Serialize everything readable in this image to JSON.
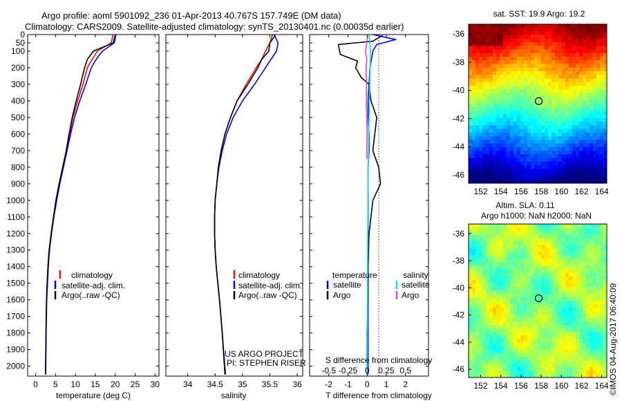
{
  "header": {
    "line1": "Argo profile: aoml 5901092_236 01-Apr-2013 40.767S 157.749E (DM data)",
    "line2": "Climatology: CARS2009. Satellite-adjusted climatology: synTS_20130401.nc (0.00035d earlier)"
  },
  "colors": {
    "climatology": "#ff0000",
    "satellite": "#0000ff",
    "argo": "#000000",
    "sat_diff_T": "#0000ff",
    "sal_diff_sat": "#00e5ee",
    "sal_diff_argo": "#e040e0"
  },
  "stamp": "©IMOS 04-Aug-2017 06:40:09",
  "chart_data": [
    {
      "type": "line",
      "id": "temperature",
      "xlabel": "temperature (deg C)",
      "ylabel": "",
      "xlim": [
        -2,
        31
      ],
      "ylim": [
        2060,
        0
      ],
      "xticks": [
        0,
        5,
        10,
        15,
        20,
        25,
        30
      ],
      "yticks": [
        0,
        50,
        100,
        200,
        300,
        400,
        500,
        600,
        700,
        800,
        900,
        1000,
        1100,
        1200,
        1300,
        1400,
        1500,
        1600,
        1700,
        1800,
        1900,
        2000
      ],
      "legend": {
        "placement": "lower-middle",
        "entries": [
          "climatology",
          "satellite-adj. clim.",
          "Argo(..raw -QC)"
        ]
      },
      "series": [
        {
          "name": "climatology",
          "color": "#ff0000",
          "x": [
            19.5,
            19.0,
            15.5,
            14.2,
            13.0,
            11.9,
            10.6,
            9.4,
            8.6,
            7.8,
            6.9,
            6.0,
            5.2,
            4.5,
            3.9,
            3.4,
            3.1,
            2.9,
            2.75,
            2.6,
            2.5
          ],
          "y": [
            0,
            50,
            100,
            150,
            200,
            300,
            400,
            500,
            600,
            700,
            800,
            900,
            1000,
            1100,
            1200,
            1300,
            1400,
            1500,
            1600,
            1800,
            2050
          ]
        },
        {
          "name": "satellite-adj. clim.",
          "color": "#0000ff",
          "x": [
            20.2,
            19.8,
            16.8,
            15.2,
            14.0,
            12.6,
            11.1,
            9.8,
            8.8,
            7.9,
            7.0,
            6.1,
            5.3,
            4.6,
            4.0,
            3.5,
            3.2,
            3.0,
            2.8,
            2.65,
            2.55
          ],
          "y": [
            0,
            50,
            100,
            150,
            200,
            300,
            400,
            500,
            600,
            700,
            800,
            900,
            1000,
            1100,
            1200,
            1300,
            1400,
            1500,
            1600,
            1800,
            2050
          ]
        },
        {
          "name": "Argo(..raw -QC)",
          "color": "#000000",
          "x": [
            20.0,
            19.5,
            14.5,
            13.0,
            12.3,
            11.3,
            10.2,
            9.2,
            8.4,
            7.7,
            6.8,
            5.9,
            5.1,
            4.5,
            3.9,
            3.4,
            3.1,
            2.9,
            2.75,
            2.6,
            2.5
          ],
          "y": [
            5,
            50,
            100,
            150,
            200,
            300,
            400,
            500,
            600,
            700,
            800,
            900,
            1000,
            1100,
            1200,
            1300,
            1400,
            1500,
            1600,
            1800,
            2050
          ]
        }
      ]
    },
    {
      "type": "line",
      "id": "salinity",
      "xlabel": "salinity",
      "ylabel": "",
      "xlim": [
        33.6,
        36.1
      ],
      "ylim": [
        2060,
        0
      ],
      "xticks": [
        34,
        34.5,
        35,
        35.5,
        36
      ],
      "legend": {
        "placement": "lower-right",
        "entries": [
          "climatology",
          "satellite-adj. clim.",
          "Argo(..raw -QC)"
        ]
      },
      "annotation": [
        "US ARGO PROJECT",
        "PI: STEPHEN RISER"
      ],
      "series": [
        {
          "name": "climatology",
          "color": "#ff0000",
          "x": [
            35.55,
            35.5,
            35.42,
            35.35,
            35.25,
            35.07,
            34.9,
            34.78,
            34.68,
            34.61,
            34.56,
            34.53,
            34.5,
            34.49,
            34.49,
            34.5,
            34.52,
            34.55,
            34.58,
            34.63,
            34.68
          ],
          "y": [
            0,
            50,
            100,
            150,
            200,
            300,
            400,
            500,
            600,
            700,
            800,
            900,
            1000,
            1100,
            1200,
            1300,
            1400,
            1500,
            1600,
            1800,
            2050
          ]
        },
        {
          "name": "satellite-adj. clim.",
          "color": "#0000ff",
          "x": [
            35.58,
            35.65,
            35.62,
            35.52,
            35.42,
            35.22,
            35.0,
            34.83,
            34.71,
            34.63,
            34.57,
            34.53,
            34.5,
            34.49,
            34.49,
            34.5,
            34.52,
            34.55,
            34.58,
            34.63,
            34.69
          ],
          "y": [
            0,
            50,
            100,
            150,
            200,
            300,
            400,
            500,
            600,
            700,
            800,
            900,
            1000,
            1100,
            1200,
            1300,
            1400,
            1500,
            1600,
            1800,
            2050
          ]
        },
        {
          "name": "Argo(..raw -QC)",
          "color": "#000000",
          "x": [
            35.6,
            35.5,
            35.48,
            35.35,
            35.28,
            35.1,
            34.9,
            34.78,
            34.68,
            34.61,
            34.56,
            34.53,
            34.5,
            34.49,
            34.49,
            34.5,
            34.52,
            34.55,
            34.58,
            34.63,
            34.68
          ],
          "y": [
            5,
            50,
            100,
            150,
            200,
            300,
            400,
            500,
            600,
            700,
            800,
            900,
            1000,
            1100,
            1200,
            1300,
            1400,
            1500,
            1600,
            1800,
            2050
          ]
        }
      ]
    },
    {
      "type": "line",
      "id": "difference",
      "xlabel": "T difference from climatology",
      "xlabel_top": "S difference from climatology",
      "xlim": [
        -3,
        3.2
      ],
      "ylim": [
        2060,
        0
      ],
      "xticks": [
        -2,
        -1,
        0,
        1,
        2
      ],
      "xticks_S_labels": [
        "-0.5",
        "-0.25",
        "0",
        "0.25",
        "0.5"
      ],
      "legend": {
        "placement": "middle",
        "header_left": "temperature",
        "header_right": "salinity",
        "entries": [
          "satellite",
          "Argo",
          "satellite",
          "Argo"
        ]
      },
      "series": [
        {
          "name": "satellite",
          "quantity": "temperature",
          "color": "#0000ff",
          "x": [
            0.3,
            1.5,
            0.5,
            0.3,
            0.15,
            0.1,
            0.05,
            0.05,
            0.1,
            0.1,
            0.05,
            0.05,
            0.05,
            0.05,
            0.05,
            0.05,
            0.05,
            0.05,
            0.05,
            0.05
          ],
          "y": [
            0,
            30,
            60,
            100,
            200,
            300,
            400,
            500,
            600,
            700,
            800,
            900,
            1000,
            1200,
            1400,
            1600,
            1800,
            1900,
            2000,
            2050
          ]
        },
        {
          "name": "Argo",
          "quantity": "temperature",
          "color": "#000000",
          "x": [
            0.8,
            0.3,
            -1.5,
            -1.4,
            -0.5,
            -0.6,
            -0.3,
            0.1,
            0.2,
            0.5,
            0.4,
            0.3,
            0.6,
            0.7,
            0.3,
            0.1,
            0.05,
            0.05,
            0.0,
            0.0
          ],
          "y": [
            5,
            40,
            60,
            120,
            160,
            200,
            260,
            300,
            400,
            500,
            600,
            700,
            800,
            900,
            1000,
            1200,
            1400,
            1600,
            1800,
            2050
          ]
        },
        {
          "name": "satellite",
          "quantity": "salinity",
          "color": "#00e5ee",
          "x": [
            0.1,
            0.15,
            0.18,
            0.16,
            0.14,
            0.12,
            0.1,
            0.08,
            0.07,
            0.06,
            0.05,
            0.04,
            0.03,
            0.02,
            0.02,
            0.01,
            0.01,
            0.0
          ],
          "y": [
            0,
            50,
            100,
            200,
            300,
            400,
            500,
            600,
            700,
            800,
            900,
            1000,
            1200,
            1400,
            1600,
            1800,
            1900,
            2050
          ]
        },
        {
          "name": "Argo",
          "quantity": "salinity",
          "color": "#e040e0",
          "x": [
            0.03,
            -0.08,
            -0.02,
            -0.05,
            -0.03,
            -0.04,
            -0.02,
            0.0,
            -0.02,
            0.0
          ],
          "y": [
            10,
            100,
            150,
            200,
            300,
            400,
            500,
            600,
            700,
            750
          ]
        }
      ]
    },
    {
      "type": "heatmap",
      "id": "sst-map",
      "title": "sat. SST: 19.9 Argo: 19.2",
      "xlim": [
        150.8,
        164.5
      ],
      "ylim": [
        -46.6,
        -35.3
      ],
      "xticks": [
        152,
        154,
        156,
        158,
        160,
        162,
        164
      ],
      "yticks": [
        -36,
        -38,
        -40,
        -42,
        -44,
        -46
      ],
      "marker": {
        "lon": 157.749,
        "lat": -40.767
      }
    },
    {
      "type": "heatmap",
      "id": "sla-map",
      "title_line1": "Altim. SLA: 0.11",
      "title_line2": "Argo h1000: NaN h2000: NaN",
      "xlim": [
        150.8,
        164.5
      ],
      "ylim": [
        -46.6,
        -35.3
      ],
      "xticks": [
        152,
        154,
        156,
        158,
        160,
        162,
        164
      ],
      "yticks": [
        -36,
        -38,
        -40,
        -42,
        -44,
        -46
      ],
      "marker": {
        "lon": 157.749,
        "lat": -40.767
      }
    }
  ]
}
